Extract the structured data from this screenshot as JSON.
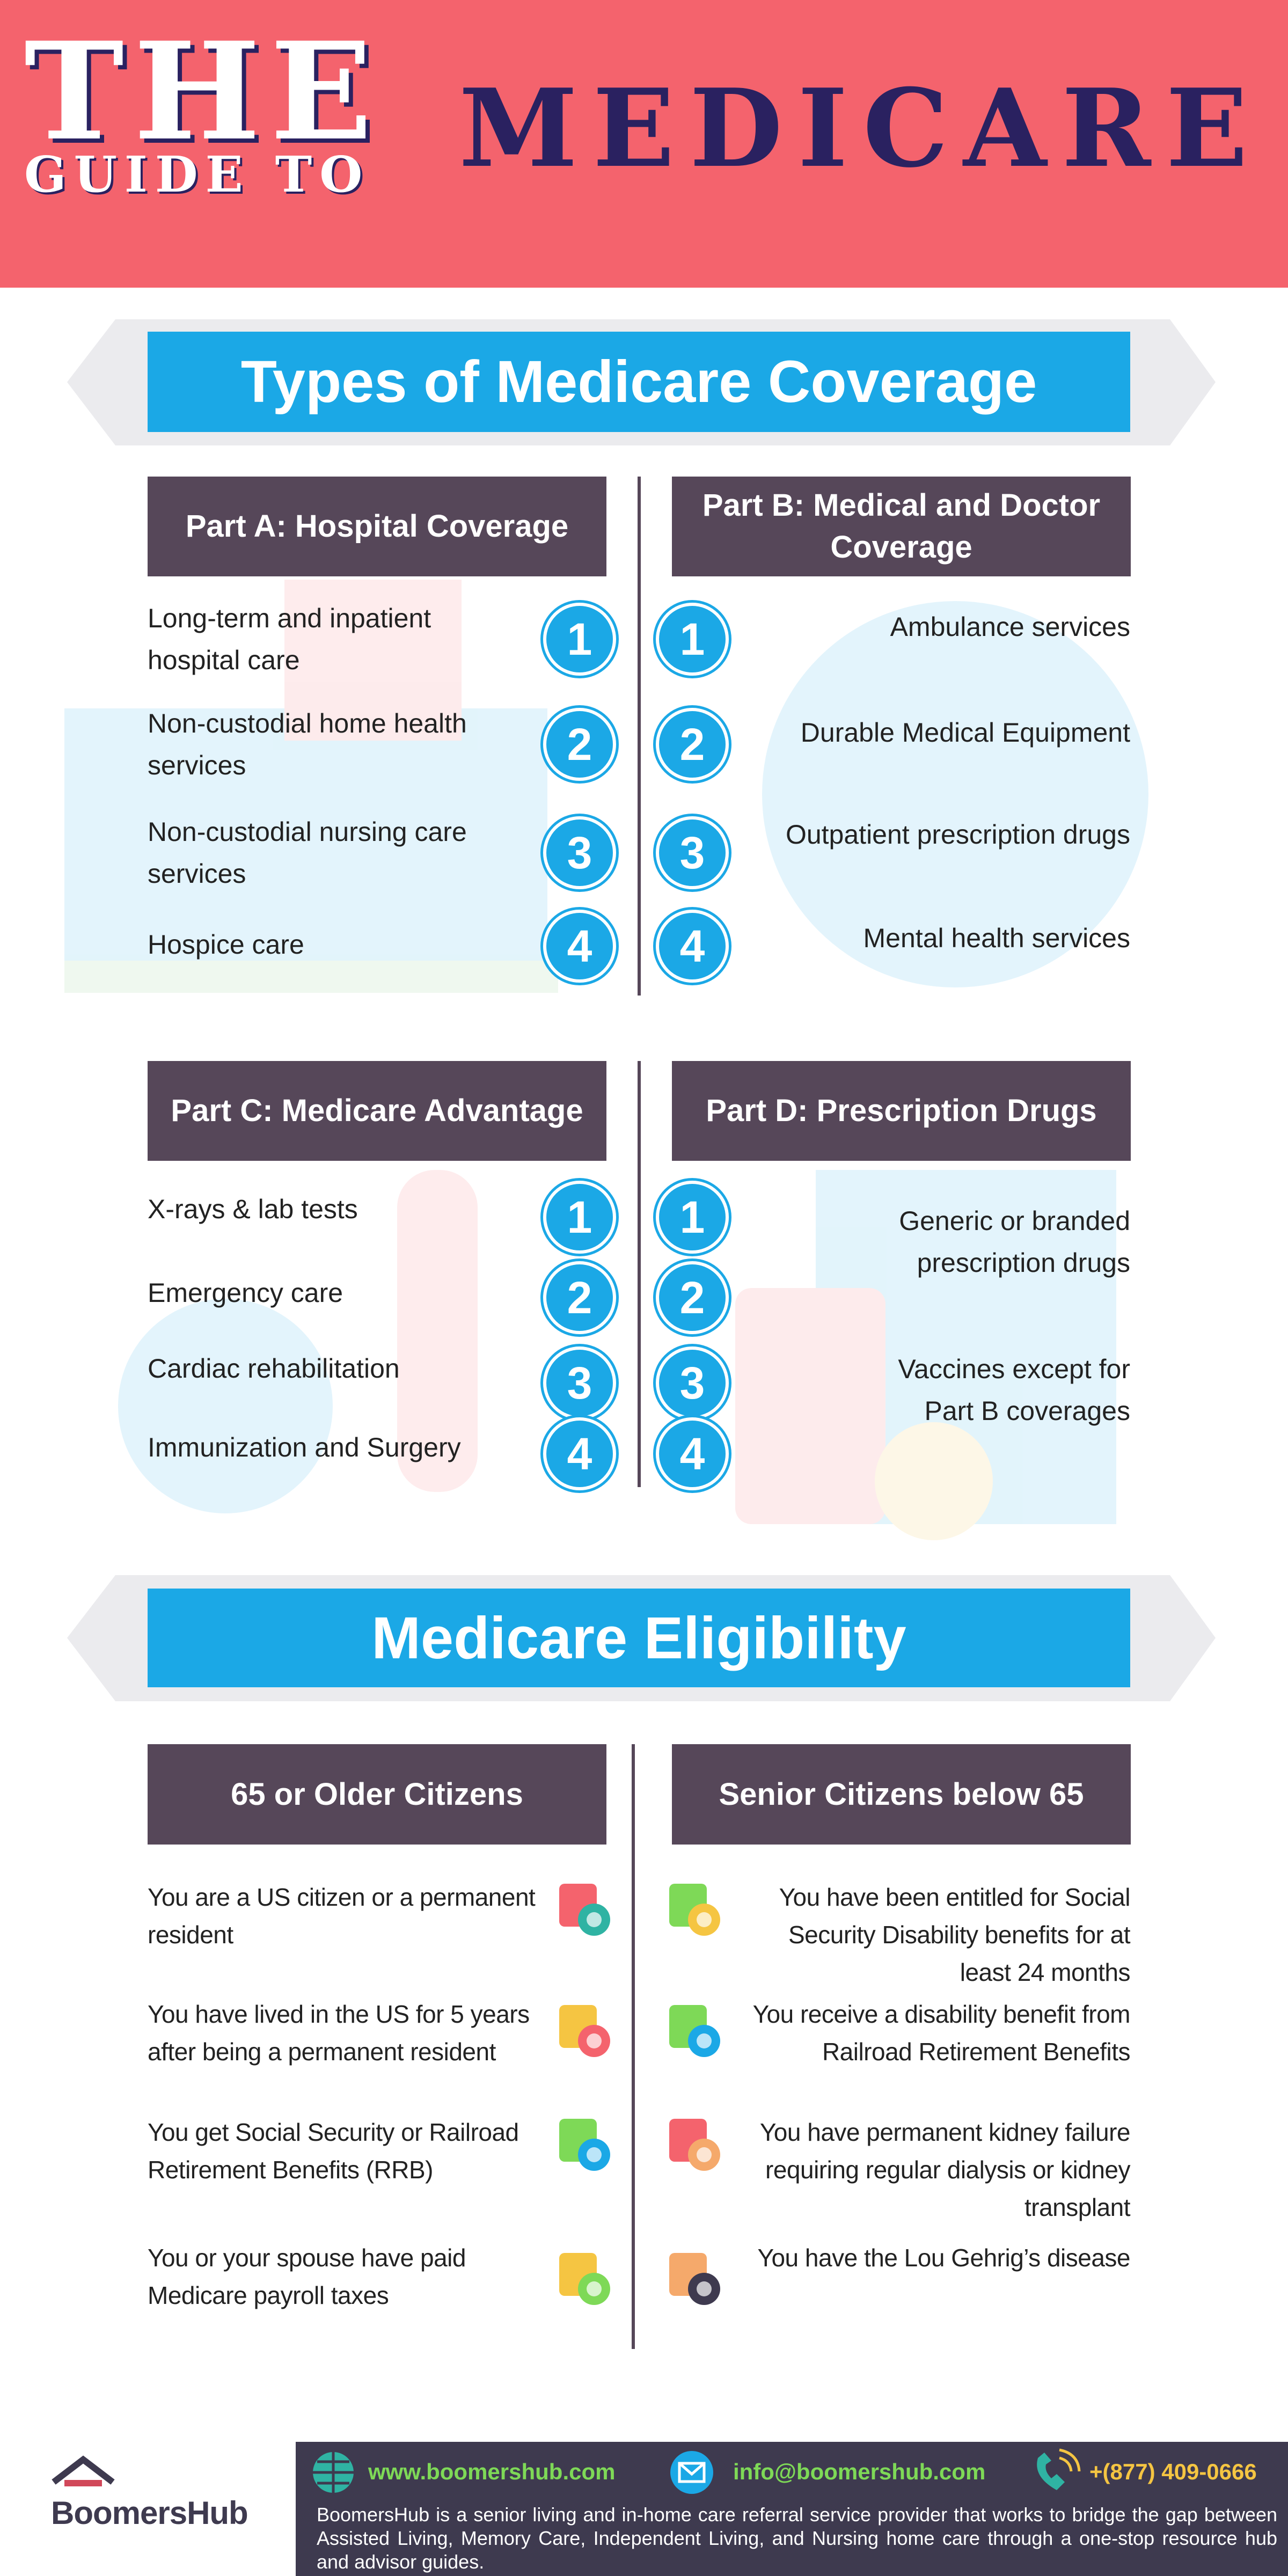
{
  "header": {
    "line1": "THE",
    "line2": "GUIDE TO",
    "line3": "MEDICARE"
  },
  "coverage": {
    "title": "Types of Medicare Coverage",
    "numbers": [
      "1",
      "2",
      "3",
      "4"
    ],
    "parts": [
      {
        "title": "Part A: Hospital Coverage",
        "items": [
          "Long-term and inpatient hospital care",
          "Non-custodial home health services",
          "Non-custodial nursing care services",
          "Hospice care"
        ]
      },
      {
        "title": "Part B: Medical and Doctor Coverage",
        "items": [
          "Ambulance services",
          "Durable Medical Equipment",
          "Outpatient prescription drugs",
          "Mental health services"
        ]
      },
      {
        "title": "Part C: Medicare Advantage",
        "items": [
          "X-rays & lab tests",
          "Emergency care",
          "Cardiac rehabilitation",
          "Immunization and Surgery"
        ]
      },
      {
        "title": "Part D: Prescription Drugs",
        "items": [
          "Generic or branded prescription drugs",
          "Vaccines except for Part B coverages"
        ]
      }
    ]
  },
  "eligibility": {
    "title": "Medicare Eligibility",
    "columns": [
      {
        "title": "65 or Older Citizens",
        "items": [
          "You are a US citizen or a permanent resident",
          "You have lived in the US for 5 years after being a permanent resident",
          "You get Social Security or Railroad Retirement Benefits (RRB)",
          "You or your spouse have paid Medicare payroll taxes"
        ]
      },
      {
        "title": "Senior Citizens below 65",
        "items": [
          "You have been entitled for Social Security Disability benefits for at least 24 months",
          "You receive a disability benefit from Railroad Retirement Benefits",
          "You have permanent kidney failure requiring regular dialysis or kidney transplant",
          "You have the Lou Gehrig’s disease"
        ]
      }
    ]
  },
  "footer": {
    "brand": "BoomersHub",
    "website": "www.boomershub.com",
    "email": "info@boomershub.com",
    "phone": "+(877) 409-0666",
    "description": "BoomersHub is a senior living and in-home care referral service provider that works to bridge the gap between Assisted Living, Memory Care, Independent Living, and Nursing home care through a one-stop resource hub and advisor guides."
  }
}
